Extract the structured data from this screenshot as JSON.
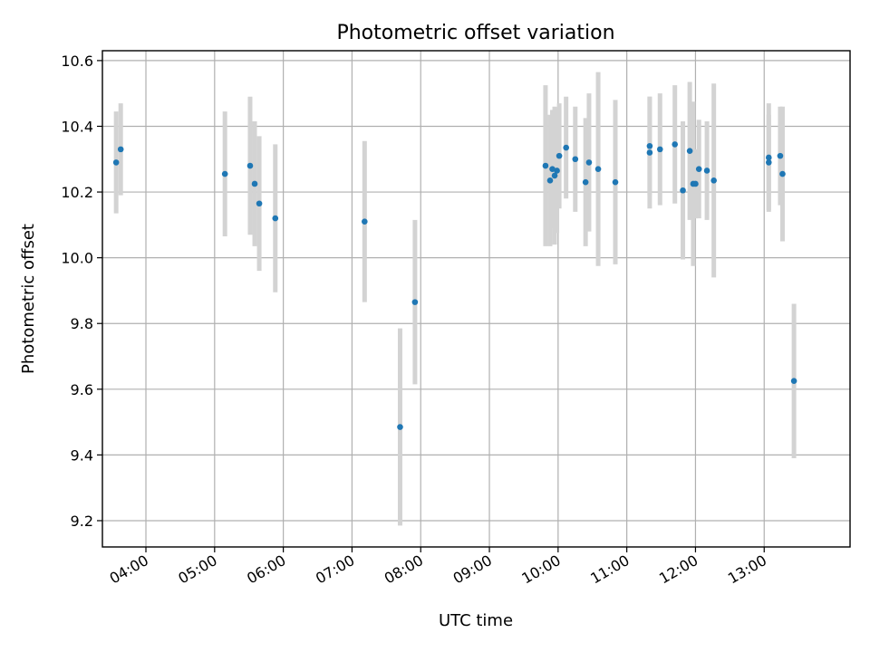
{
  "chart_data": {
    "type": "scatter",
    "title": "Photometric offset variation",
    "xlabel": "UTC time",
    "ylabel": "Photometric offset",
    "x_ticks": [
      "04:00",
      "05:00",
      "06:00",
      "07:00",
      "08:00",
      "09:00",
      "10:00",
      "11:00",
      "12:00",
      "13:00"
    ],
    "y_ticks": [
      "9.2",
      "9.4",
      "9.6",
      "9.8",
      "10.0",
      "10.2",
      "10.4",
      "10.6"
    ],
    "xlim": [
      "03:22",
      "14:15"
    ],
    "ylim": [
      9.12,
      10.63
    ],
    "grid": true,
    "marker_color": "#1f77b4",
    "errorbar_color": "#d3d3d3",
    "points": [
      {
        "x": "03:34",
        "y": 10.29,
        "err": 0.155
      },
      {
        "x": "03:38",
        "y": 10.33,
        "err": 0.14
      },
      {
        "x": "05:09",
        "y": 10.255,
        "err": 0.19
      },
      {
        "x": "05:31",
        "y": 10.28,
        "err": 0.21
      },
      {
        "x": "05:35",
        "y": 10.225,
        "err": 0.19
      },
      {
        "x": "05:39",
        "y": 10.165,
        "err": 0.205
      },
      {
        "x": "05:53",
        "y": 10.12,
        "err": 0.225
      },
      {
        "x": "07:11",
        "y": 10.11,
        "err": 0.245
      },
      {
        "x": "07:42",
        "y": 9.485,
        "err": 0.3
      },
      {
        "x": "07:55",
        "y": 9.865,
        "err": 0.25
      },
      {
        "x": "09:49",
        "y": 10.28,
        "err": 0.245
      },
      {
        "x": "09:53",
        "y": 10.235,
        "err": 0.2
      },
      {
        "x": "09:55",
        "y": 10.27,
        "err": 0.18
      },
      {
        "x": "09:57",
        "y": 10.25,
        "err": 0.21
      },
      {
        "x": "09:59",
        "y": 10.265,
        "err": 0.19
      },
      {
        "x": "10:01",
        "y": 10.31,
        "err": 0.16
      },
      {
        "x": "10:07",
        "y": 10.335,
        "err": 0.155
      },
      {
        "x": "10:15",
        "y": 10.3,
        "err": 0.16
      },
      {
        "x": "10:24",
        "y": 10.23,
        "err": 0.195
      },
      {
        "x": "10:27",
        "y": 10.29,
        "err": 0.21
      },
      {
        "x": "10:35",
        "y": 10.27,
        "err": 0.295
      },
      {
        "x": "10:50",
        "y": 10.23,
        "err": 0.25
      },
      {
        "x": "11:20",
        "y": 10.34,
        "err": 0.15
      },
      {
        "x": "11:20",
        "y": 10.32,
        "err": 0.17
      },
      {
        "x": "11:29",
        "y": 10.33,
        "err": 0.17
      },
      {
        "x": "11:42",
        "y": 10.345,
        "err": 0.18
      },
      {
        "x": "11:49",
        "y": 10.205,
        "err": 0.21
      },
      {
        "x": "11:55",
        "y": 10.325,
        "err": 0.21
      },
      {
        "x": "11:58",
        "y": 10.225,
        "err": 0.25
      },
      {
        "x": "12:00",
        "y": 10.225,
        "err": 0.105
      },
      {
        "x": "12:03",
        "y": 10.27,
        "err": 0.15
      },
      {
        "x": "12:10",
        "y": 10.265,
        "err": 0.15
      },
      {
        "x": "12:16",
        "y": 10.235,
        "err": 0.295
      },
      {
        "x": "13:04",
        "y": 10.305,
        "err": 0.165
      },
      {
        "x": "13:04",
        "y": 10.29,
        "err": 0.145
      },
      {
        "x": "13:14",
        "y": 10.31,
        "err": 0.15
      },
      {
        "x": "13:16",
        "y": 10.255,
        "err": 0.205
      },
      {
        "x": "13:26",
        "y": 9.625,
        "err": 0.235
      }
    ]
  }
}
